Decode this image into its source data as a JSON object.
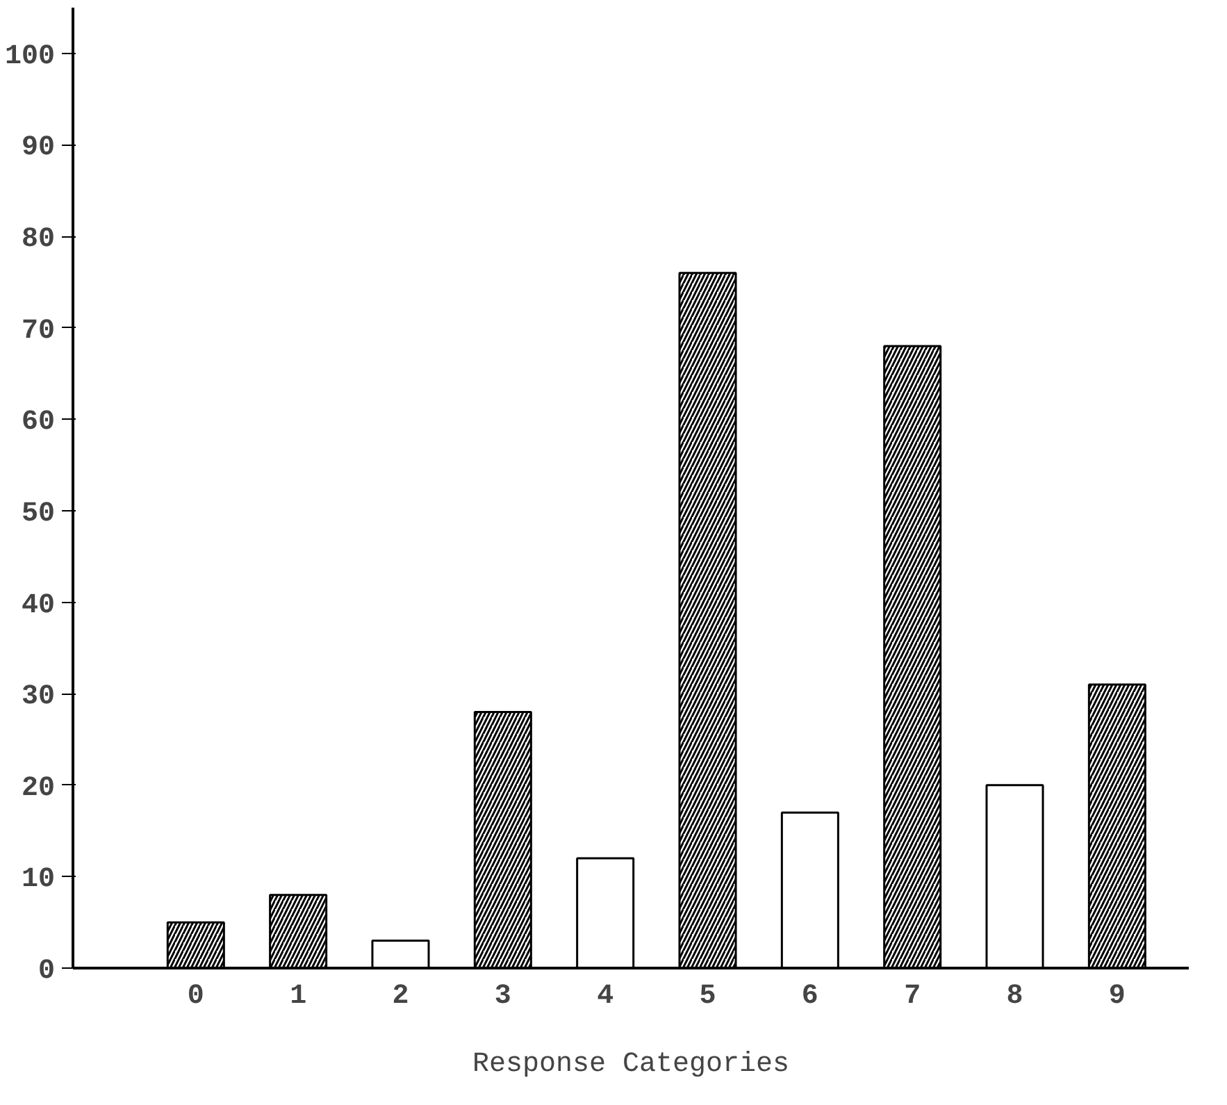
{
  "chart_data": {
    "type": "bar",
    "xlabel": "Response Categories",
    "categories": [
      "0",
      "1",
      "2",
      "3",
      "4",
      "5",
      "6",
      "7",
      "8",
      "9"
    ],
    "values": [
      5,
      8,
      3,
      28,
      12,
      76,
      17,
      68,
      20,
      31
    ],
    "colors": [
      "#000000",
      "#000000",
      "#ffffff",
      "#000000",
      "#ffffff",
      "#000000",
      "#ffffff",
      "#000000",
      "#ffffff",
      "#000000"
    ],
    "ylim": [
      0,
      105
    ],
    "yticks": [
      0,
      10,
      20,
      30,
      40,
      50,
      60,
      70,
      80,
      90,
      100
    ],
    "grid": false
  }
}
